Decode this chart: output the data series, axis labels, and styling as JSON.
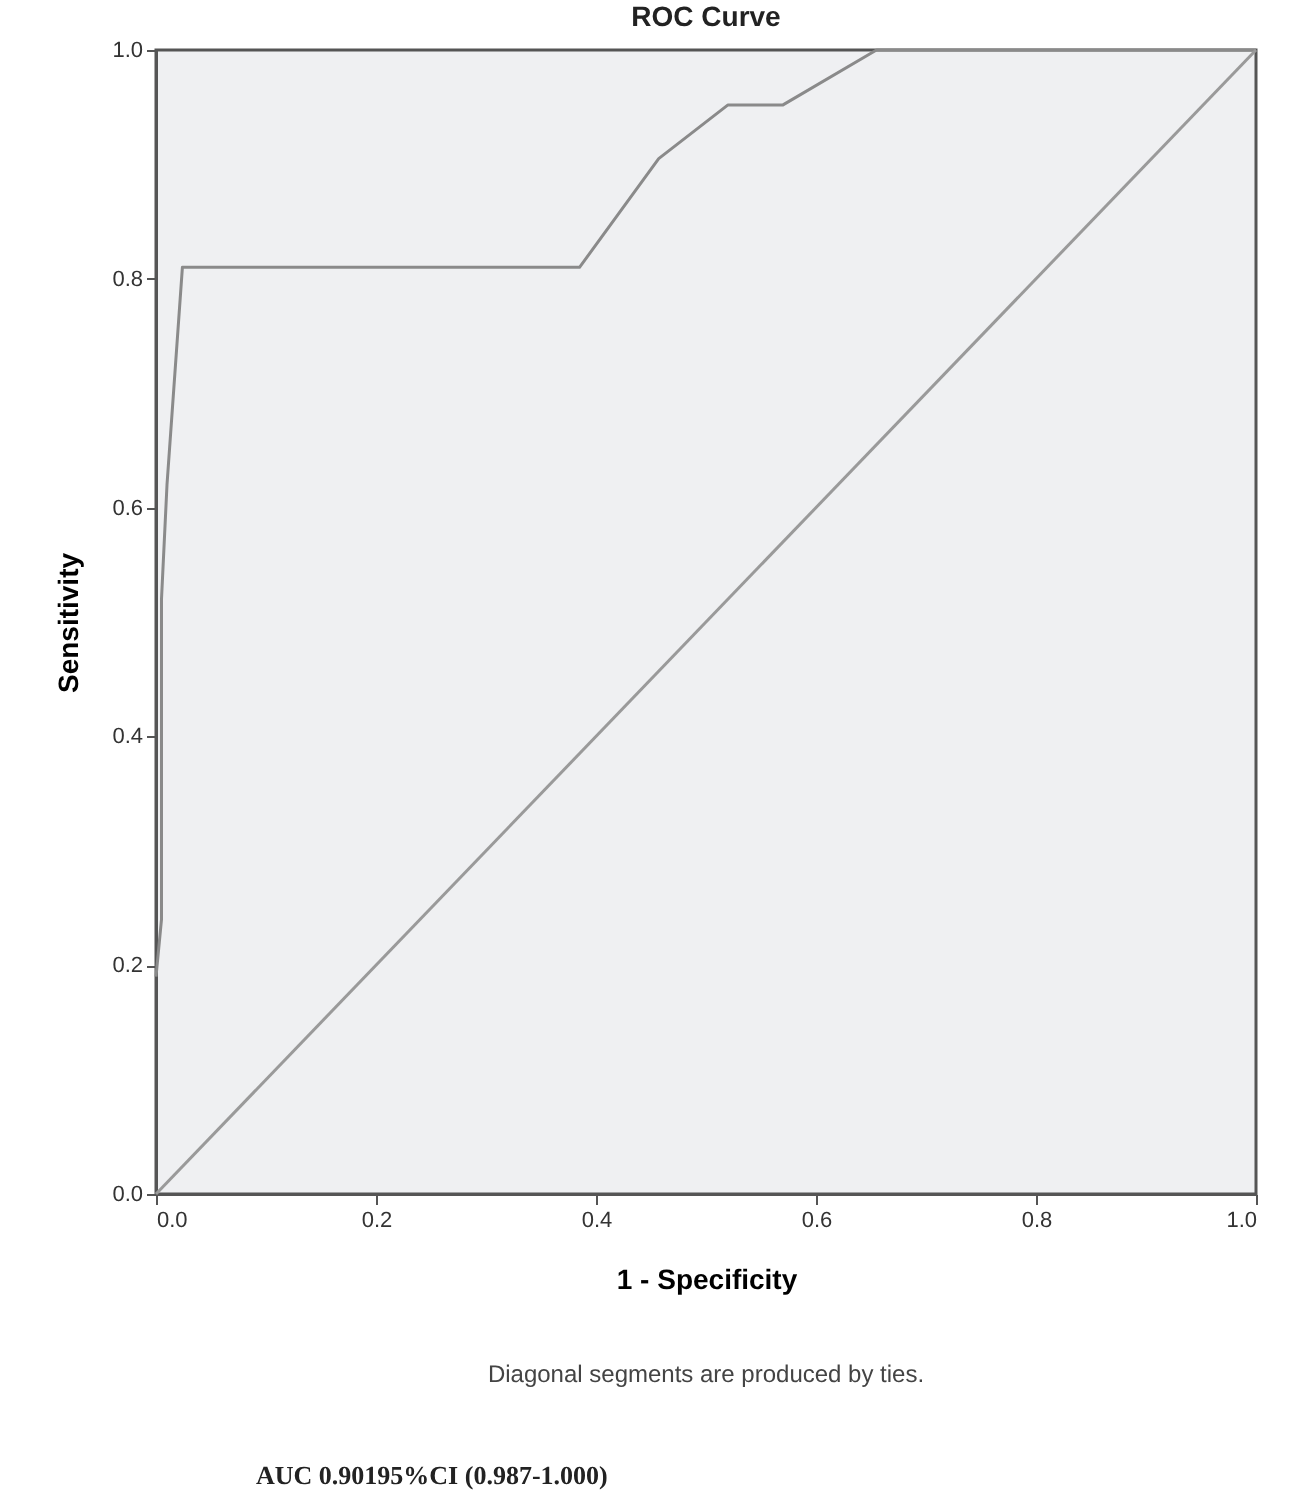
{
  "chart_data": {
    "type": "line",
    "title": "ROC Curve",
    "xlabel": "1 - Specificity",
    "ylabel": "Sensitivity",
    "series": [
      {
        "color": "#8a8a8a",
        "x": [
          0,
          0.005,
          0.005,
          0.01,
          0.024,
          0.385,
          0.457,
          0.52,
          0.57,
          0.655,
          1.0
        ],
        "values": [
          0.19,
          0.24,
          0.52,
          0.62,
          0.81,
          0.81,
          0.905,
          0.952,
          0.952,
          1.0,
          1.0
        ]
      },
      {
        "color": "#9a9a9a",
        "x": [
          0,
          1
        ],
        "values": [
          0,
          1
        ]
      }
    ],
    "xlim": [
      0,
      1
    ],
    "ylim": [
      0,
      1
    ],
    "xticks": [
      {
        "value": 0,
        "label": "0.0"
      },
      {
        "value": 0.2,
        "label": "0.2"
      },
      {
        "value": 0.4,
        "label": "0.4"
      },
      {
        "value": 0.6,
        "label": "0.6"
      },
      {
        "value": 0.8,
        "label": "0.8"
      },
      {
        "value": 1,
        "label": "1.0"
      }
    ],
    "yticks": [
      {
        "value": 0,
        "label": "0.0"
      },
      {
        "value": 0.2,
        "label": "0.2"
      },
      {
        "value": 0.4,
        "label": "0.4"
      },
      {
        "value": 0.6,
        "label": "0.6"
      },
      {
        "value": 0.8,
        "label": "0.8"
      },
      {
        "value": 1,
        "label": "1.0"
      }
    ],
    "grid": false,
    "marker": "none",
    "line_style": "solid",
    "annotations": [
      "Diagonal segments are produced by ties.",
      "AUC 0.90195%CI (0.987-1.000)"
    ]
  }
}
